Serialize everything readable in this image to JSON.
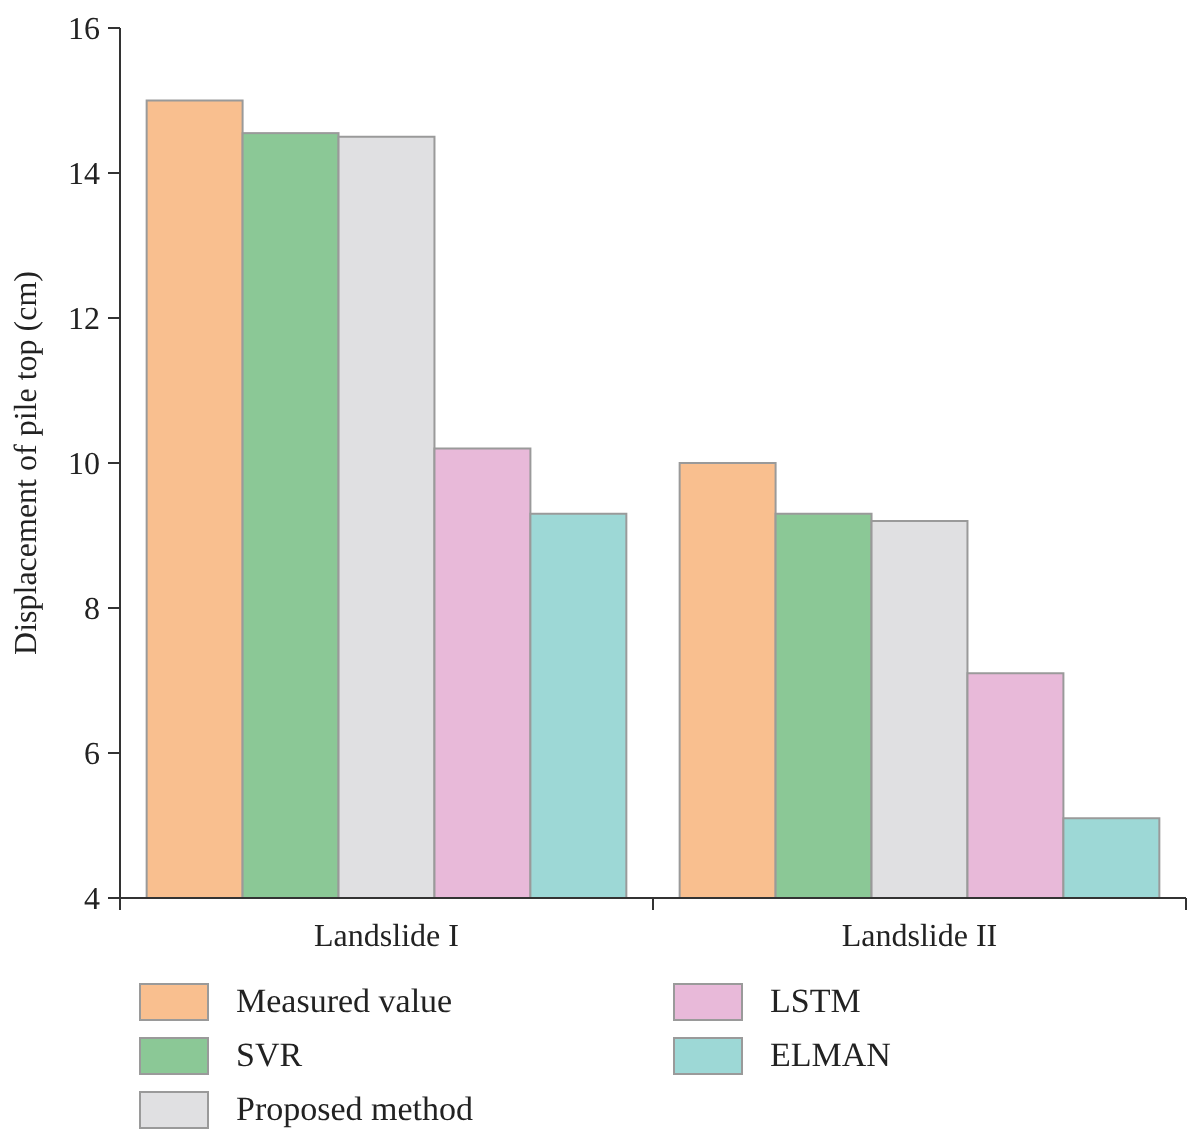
{
  "chart_data": {
    "type": "bar",
    "ylabel": "Displacement of pile top (cm)",
    "categories": [
      "Landslide I",
      "Landslide II"
    ],
    "series": [
      {
        "name": "Measured value",
        "color": "#f9bf8f",
        "values": [
          15.0,
          10.0
        ]
      },
      {
        "name": "SVR",
        "color": "#8bc896",
        "values": [
          14.55,
          9.3
        ]
      },
      {
        "name": "Proposed method",
        "color": "#e0e0e2",
        "values": [
          14.5,
          9.2
        ]
      },
      {
        "name": "LSTM",
        "color": "#e8b9d9",
        "values": [
          10.2,
          7.1
        ]
      },
      {
        "name": "ELMAN",
        "color": "#9dd8d6",
        "values": [
          9.3,
          5.1
        ]
      }
    ],
    "ylim": [
      4,
      16
    ],
    "yticks": [
      4,
      6,
      8,
      10,
      12,
      14,
      16
    ],
    "grid": false,
    "legend": "bottom"
  }
}
